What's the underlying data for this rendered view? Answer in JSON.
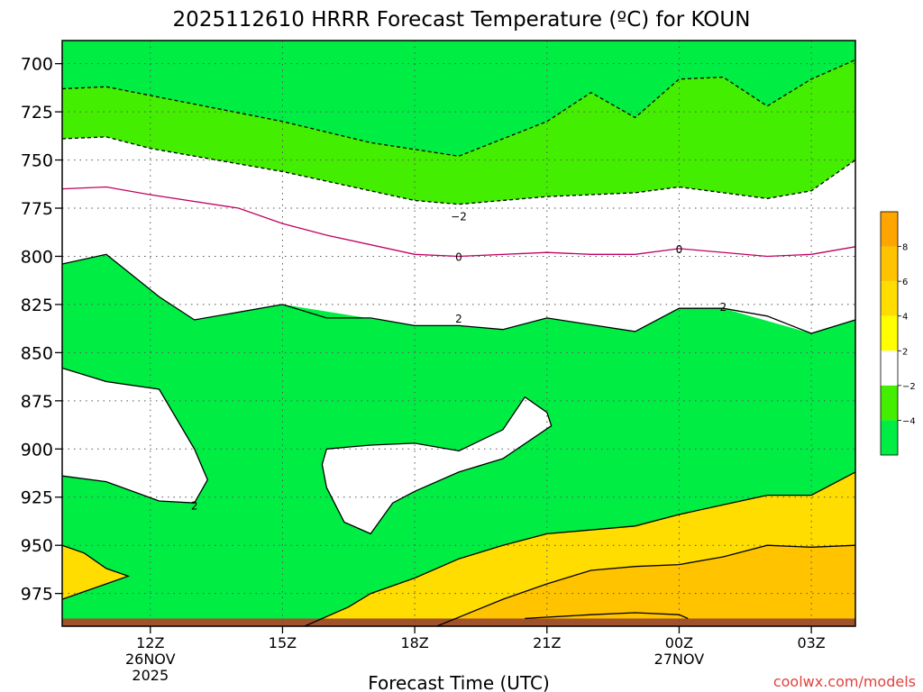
{
  "chart_data": {
    "type": "heatmap",
    "title": "2025112610 HRRR Forecast Temperature (ºC) for KOUN",
    "xlabel": "Forecast Time (UTC)",
    "ylabel": "",
    "watermark": "coolwx.com/models",
    "x_range_hours_utc": [
      10,
      28
    ],
    "y_range_hpa": [
      688,
      992
    ],
    "y_ticks": [
      {
        "p": 700,
        "label": "700"
      },
      {
        "p": 725,
        "label": "725"
      },
      {
        "p": 750,
        "label": "750"
      },
      {
        "p": 775,
        "label": "775"
      },
      {
        "p": 800,
        "label": "800"
      },
      {
        "p": 825,
        "label": "825"
      },
      {
        "p": 850,
        "label": "850"
      },
      {
        "p": 875,
        "label": "875"
      },
      {
        "p": 900,
        "label": "900"
      },
      {
        "p": 925,
        "label": "925"
      },
      {
        "p": 950,
        "label": "950"
      },
      {
        "p": 975,
        "label": "975"
      }
    ],
    "x_ticks": [
      {
        "h": 12,
        "label": "12Z",
        "date": "26NOV",
        "year": "2025"
      },
      {
        "h": 15,
        "label": "15Z",
        "date": "",
        "year": ""
      },
      {
        "h": 18,
        "label": "18Z",
        "date": "",
        "year": ""
      },
      {
        "h": 21,
        "label": "21Z",
        "date": "",
        "year": ""
      },
      {
        "h": 24,
        "label": "00Z",
        "date": "27NOV",
        "year": ""
      },
      {
        "h": 27,
        "label": "03Z",
        "date": "",
        "year": ""
      }
    ],
    "grid": true,
    "colorbar": {
      "levels": [
        {
          "color": "#00ee44",
          "label": ""
        },
        {
          "color": "#44ee00",
          "label": "−4"
        },
        {
          "color": "#ffffff",
          "label": "−2"
        },
        {
          "color": "#ffff00",
          "label": "2"
        },
        {
          "color": "#ffdd00",
          "label": "4"
        },
        {
          "color": "#ffc300",
          "label": "6"
        },
        {
          "color": "#ffa500",
          "label": "8"
        }
      ]
    },
    "contour_labels": [
      {
        "h": 19.0,
        "p": 779,
        "text": "−2"
      },
      {
        "h": 19.0,
        "p": 800,
        "text": "0"
      },
      {
        "h": 24.0,
        "p": 796,
        "text": "0"
      },
      {
        "h": 19.0,
        "p": 832,
        "text": "2"
      },
      {
        "h": 25.0,
        "p": 826,
        "text": "2"
      },
      {
        "h": 13.0,
        "p": 929,
        "text": "2"
      }
    ],
    "regions": [
      {
        "name": "below-minus-4",
        "color": "#00ee44",
        "points": [
          [
            10,
            689
          ],
          [
            28,
            689
          ],
          [
            28,
            698
          ],
          [
            27,
            708
          ],
          [
            26,
            722
          ],
          [
            25,
            707
          ],
          [
            24,
            708
          ],
          [
            23,
            728
          ],
          [
            22,
            715
          ],
          [
            21,
            730
          ],
          [
            19,
            748
          ],
          [
            17,
            741
          ],
          [
            15,
            730
          ],
          [
            11,
            712
          ],
          [
            10,
            713
          ]
        ]
      },
      {
        "name": "minus-4-to-minus-2",
        "color": "#44ee00",
        "points": [
          [
            10,
            713
          ],
          [
            11,
            712
          ],
          [
            15,
            730
          ],
          [
            17,
            741
          ],
          [
            19,
            748
          ],
          [
            21,
            730
          ],
          [
            22,
            715
          ],
          [
            23,
            728
          ],
          [
            24,
            708
          ],
          [
            25,
            707
          ],
          [
            26,
            722
          ],
          [
            27,
            708
          ],
          [
            28,
            698
          ],
          [
            28,
            750
          ],
          [
            27,
            766
          ],
          [
            26,
            770
          ],
          [
            24,
            764
          ],
          [
            23,
            767
          ],
          [
            21,
            769
          ],
          [
            19,
            773
          ],
          [
            18,
            771
          ],
          [
            15,
            756
          ],
          [
            12,
            744
          ],
          [
            11,
            738
          ],
          [
            10,
            739
          ]
        ]
      },
      {
        "name": "minus-2-to-2",
        "color": "#ffffff",
        "points": [
          [
            10,
            739
          ],
          [
            11,
            738
          ],
          [
            12,
            744
          ],
          [
            15,
            756
          ],
          [
            18,
            771
          ],
          [
            19,
            773
          ],
          [
            21,
            769
          ],
          [
            23,
            767
          ],
          [
            24,
            764
          ],
          [
            26,
            770
          ],
          [
            27,
            766
          ],
          [
            28,
            750
          ],
          [
            28,
            833
          ],
          [
            27,
            840
          ],
          [
            25,
            827
          ],
          [
            24,
            827
          ],
          [
            23,
            839
          ],
          [
            21,
            832
          ],
          [
            20,
            838
          ],
          [
            19,
            836
          ],
          [
            18,
            836
          ],
          [
            15,
            825
          ],
          [
            13,
            833
          ],
          [
            12.2,
            821
          ],
          [
            11,
            799
          ],
          [
            10,
            804
          ]
        ]
      },
      {
        "name": "zero-to-2-white-left",
        "color": "#ffffff",
        "points": [
          [
            10,
            858
          ],
          [
            11,
            865
          ],
          [
            12.2,
            869
          ],
          [
            13,
            900
          ],
          [
            13.3,
            916
          ],
          [
            13,
            928
          ],
          [
            12.2,
            927
          ],
          [
            11,
            917
          ],
          [
            10,
            914
          ]
        ]
      },
      {
        "name": "zero-to-2-white-mid",
        "color": "#ffffff",
        "points": [
          [
            16,
            900
          ],
          [
            17,
            898
          ],
          [
            18,
            897
          ],
          [
            19,
            901
          ],
          [
            20,
            890
          ],
          [
            20.5,
            873
          ],
          [
            21,
            881
          ],
          [
            21.1,
            888
          ],
          [
            20,
            905
          ],
          [
            19,
            912
          ],
          [
            18,
            922
          ],
          [
            17.5,
            928
          ],
          [
            17,
            944
          ],
          [
            16.4,
            938
          ],
          [
            16,
            920
          ],
          [
            15.9,
            908
          ]
        ]
      },
      {
        "name": "two-to-four",
        "color": "#ffdd00",
        "points": [
          [
            15.5,
            992
          ],
          [
            16.5,
            982
          ],
          [
            17,
            975
          ],
          [
            18,
            967
          ],
          [
            19,
            957
          ],
          [
            20,
            950
          ],
          [
            21,
            944
          ],
          [
            23,
            940
          ],
          [
            24,
            934
          ],
          [
            25,
            929
          ],
          [
            26,
            924
          ],
          [
            27,
            924
          ],
          [
            28,
            912
          ],
          [
            28,
            992
          ]
        ]
      },
      {
        "name": "two-to-four-left",
        "color": "#ffdd00",
        "points": [
          [
            10,
            950
          ],
          [
            10.5,
            954
          ],
          [
            11,
            962
          ],
          [
            11.5,
            966
          ],
          [
            11,
            970
          ],
          [
            10,
            978
          ]
        ]
      },
      {
        "name": "four-to-six",
        "color": "#ffc300",
        "points": [
          [
            18.5,
            992
          ],
          [
            20,
            978
          ],
          [
            21,
            970
          ],
          [
            22,
            963
          ],
          [
            23,
            961
          ],
          [
            24,
            960
          ],
          [
            25,
            956
          ],
          [
            26,
            950
          ],
          [
            27,
            951
          ],
          [
            28,
            950
          ],
          [
            28,
            992
          ]
        ]
      },
      {
        "name": "above-six",
        "color": "#ffc300",
        "points": [
          [
            20.5,
            988
          ],
          [
            22,
            986
          ],
          [
            23,
            985
          ],
          [
            24,
            986
          ],
          [
            25,
            989
          ],
          [
            28,
            988
          ],
          [
            28,
            992
          ],
          [
            20.5,
            992
          ]
        ]
      }
    ],
    "contours": [
      {
        "name": "minus-4-line",
        "color": "#000000",
        "dash": true,
        "points": [
          [
            10,
            713
          ],
          [
            11,
            712
          ],
          [
            15,
            730
          ],
          [
            17,
            741
          ],
          [
            19,
            748
          ],
          [
            21,
            730
          ],
          [
            22,
            715
          ],
          [
            23,
            728
          ],
          [
            24,
            708
          ],
          [
            25,
            707
          ],
          [
            26,
            722
          ],
          [
            27,
            708
          ],
          [
            28,
            698
          ]
        ]
      },
      {
        "name": "minus-2-line",
        "color": "#000000",
        "dash": true,
        "points": [
          [
            10,
            739
          ],
          [
            11,
            738
          ],
          [
            12,
            744
          ],
          [
            15,
            756
          ],
          [
            18,
            771
          ],
          [
            19,
            773
          ],
          [
            21,
            769
          ],
          [
            23,
            767
          ],
          [
            24,
            764
          ],
          [
            26,
            770
          ],
          [
            27,
            766
          ],
          [
            28,
            750
          ]
        ]
      },
      {
        "name": "zero-line",
        "color": "#c00060",
        "dash": false,
        "points": [
          [
            10,
            765
          ],
          [
            11,
            764
          ],
          [
            12,
            768
          ],
          [
            14,
            775
          ],
          [
            15,
            783
          ],
          [
            16,
            789
          ],
          [
            18,
            799
          ],
          [
            19,
            800
          ],
          [
            21,
            798
          ],
          [
            22,
            799
          ],
          [
            23,
            799
          ],
          [
            24,
            796
          ],
          [
            26,
            800
          ],
          [
            27,
            799
          ],
          [
            28,
            795
          ]
        ]
      },
      {
        "name": "plus-2-line",
        "color": "#000000",
        "dash": false,
        "points": [
          [
            10,
            804
          ],
          [
            11,
            799
          ],
          [
            12.2,
            821
          ],
          [
            13,
            833
          ],
          [
            15,
            825
          ],
          [
            16,
            832
          ],
          [
            17,
            832
          ],
          [
            18,
            836
          ],
          [
            19,
            836
          ],
          [
            20,
            838
          ],
          [
            21,
            832
          ],
          [
            23,
            839
          ],
          [
            24,
            827
          ],
          [
            25,
            827
          ],
          [
            26,
            831
          ],
          [
            27,
            840
          ],
          [
            28,
            833
          ]
        ]
      },
      {
        "name": "plus-2-left-loop",
        "color": "#000000",
        "dash": false,
        "points": [
          [
            10,
            858
          ],
          [
            11,
            865
          ],
          [
            12.2,
            869
          ],
          [
            13,
            900
          ],
          [
            13.3,
            916
          ],
          [
            13,
            928
          ],
          [
            12.2,
            927
          ],
          [
            11,
            917
          ],
          [
            10,
            914
          ]
        ]
      },
      {
        "name": "plus-2-mid-loop",
        "color": "#000000",
        "dash": false,
        "points": [
          [
            16,
            900
          ],
          [
            17,
            898
          ],
          [
            18,
            897
          ],
          [
            19,
            901
          ],
          [
            20,
            890
          ],
          [
            20.5,
            873
          ],
          [
            21,
            881
          ],
          [
            21.1,
            888
          ],
          [
            20,
            905
          ],
          [
            19,
            912
          ],
          [
            18,
            922
          ],
          [
            17.5,
            928
          ],
          [
            17,
            944
          ],
          [
            16.4,
            938
          ],
          [
            16,
            920
          ],
          [
            15.9,
            908
          ],
          [
            16,
            900
          ]
        ]
      },
      {
        "name": "plus-4-line",
        "color": "#000000",
        "dash": false,
        "points": [
          [
            15.5,
            992
          ],
          [
            16.5,
            982
          ],
          [
            17,
            975
          ],
          [
            18,
            967
          ],
          [
            19,
            957
          ],
          [
            20,
            950
          ],
          [
            21,
            944
          ],
          [
            23,
            940
          ],
          [
            24,
            934
          ],
          [
            25,
            929
          ],
          [
            26,
            924
          ],
          [
            27,
            924
          ],
          [
            28,
            912
          ]
        ]
      },
      {
        "name": "plus-4-left",
        "color": "#000000",
        "dash": false,
        "points": [
          [
            10,
            950
          ],
          [
            10.5,
            954
          ],
          [
            11,
            962
          ],
          [
            11.5,
            966
          ],
          [
            11,
            970
          ],
          [
            10,
            978
          ]
        ]
      },
      {
        "name": "plus-6-line",
        "color": "#000000",
        "dash": false,
        "points": [
          [
            18.5,
            992
          ],
          [
            20,
            978
          ],
          [
            21,
            970
          ],
          [
            22,
            963
          ],
          [
            23,
            961
          ],
          [
            24,
            960
          ],
          [
            25,
            956
          ],
          [
            26,
            950
          ],
          [
            27,
            951
          ],
          [
            28,
            950
          ]
        ]
      },
      {
        "name": "plus-8-line",
        "color": "#000000",
        "dash": false,
        "points": [
          [
            20.5,
            988
          ],
          [
            22,
            986
          ],
          [
            23,
            985
          ],
          [
            24,
            986
          ],
          [
            24.2,
            988
          ]
        ]
      }
    ],
    "ground": {
      "color": "#a0522d",
      "top_hpa": 988
    }
  }
}
